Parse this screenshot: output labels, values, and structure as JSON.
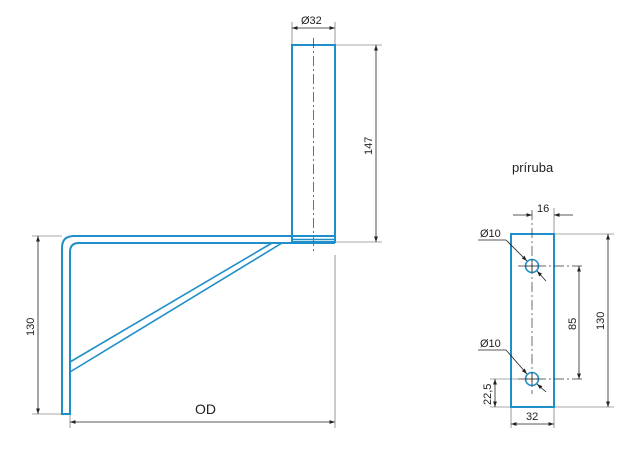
{
  "colors": {
    "part_outline": "#1f8fc9",
    "dimension_lines": "#222222"
  },
  "bracket": {
    "pipe_diameter_label": "Ø32",
    "pipe_height_label": "147",
    "bracket_height_label": "130",
    "arm_length_label": "OD"
  },
  "flange": {
    "title": "príruba",
    "width_top_label": "16",
    "hole_top_label": "Ø10",
    "hole_bottom_label": "Ø10",
    "hole_spacing_label": "85",
    "height_label": "130",
    "bottom_offset_label": "22,5",
    "width_bottom_label": "32"
  }
}
